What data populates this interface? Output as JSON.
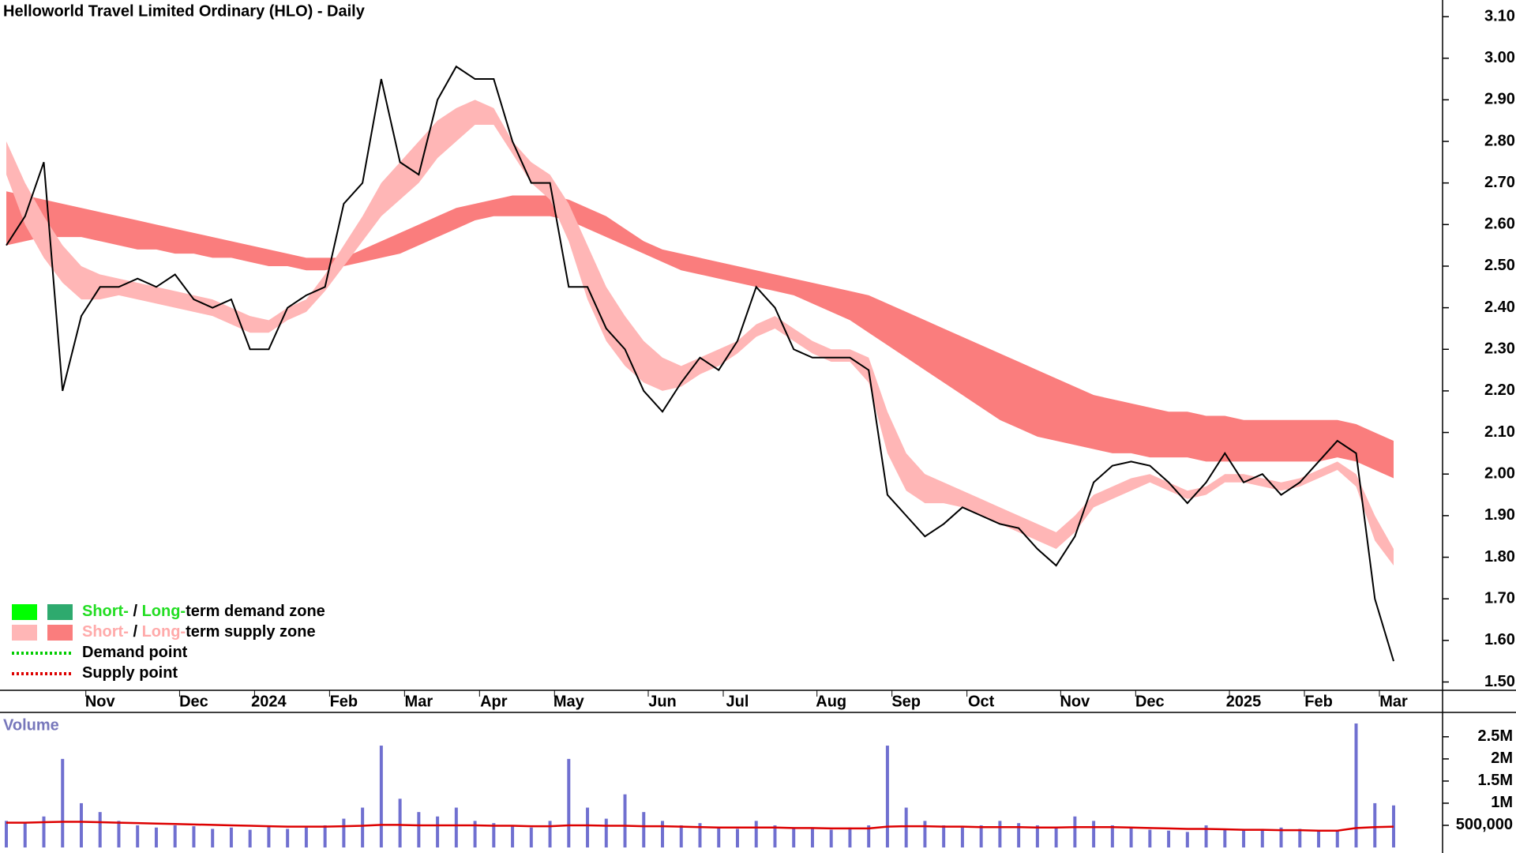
{
  "chart_data": [
    {
      "type": "line",
      "title": "Helloworld Travel Limited Ordinary (HLO) - Daily",
      "categories": [
        null,
        null,
        null,
        null,
        null,
        "Nov",
        null,
        null,
        null,
        null,
        "Dec",
        null,
        null,
        null,
        "2024",
        null,
        null,
        null,
        "Feb",
        null,
        null,
        null,
        "Mar",
        null,
        null,
        null,
        "Apr",
        null,
        null,
        null,
        "May",
        null,
        null,
        null,
        null,
        "Jun",
        null,
        null,
        null,
        "Jul",
        null,
        null,
        null,
        null,
        "Aug",
        null,
        null,
        null,
        "Sep",
        null,
        null,
        null,
        "Oct",
        null,
        null,
        null,
        null,
        "Nov",
        null,
        null,
        null,
        "Dec",
        null,
        null,
        null,
        null,
        "2025",
        null,
        null,
        null,
        "Feb",
        null,
        null,
        null,
        "Mar"
      ],
      "series": [
        {
          "color": "#000000",
          "values": [
            2.55,
            2.62,
            2.75,
            2.2,
            2.38,
            2.45,
            2.45,
            2.47,
            2.45,
            2.48,
            2.42,
            2.4,
            2.42,
            2.3,
            2.3,
            2.4,
            2.43,
            2.45,
            2.65,
            2.7,
            2.95,
            2.75,
            2.72,
            2.9,
            2.98,
            2.95,
            2.95,
            2.8,
            2.7,
            2.7,
            2.45,
            2.45,
            2.35,
            2.3,
            2.2,
            2.15,
            2.22,
            2.28,
            2.25,
            2.32,
            2.45,
            2.4,
            2.3,
            2.28,
            2.28,
            2.28,
            2.25,
            1.95,
            1.9,
            1.85,
            1.88,
            1.92,
            1.9,
            1.88,
            1.87,
            1.82,
            1.78,
            1.85,
            1.98,
            2.02,
            2.03,
            2.02,
            1.98,
            1.93,
            1.98,
            2.05,
            1.98,
            2.0,
            1.95,
            1.98,
            2.03,
            2.08,
            2.05,
            1.7,
            1.55
          ]
        }
      ],
      "bands": [
        {
          "color": "#fa7d7d",
          "upper": [
            2.68,
            2.67,
            2.66,
            2.65,
            2.64,
            2.63,
            2.62,
            2.61,
            2.6,
            2.59,
            2.58,
            2.57,
            2.56,
            2.55,
            2.54,
            2.53,
            2.52,
            2.52,
            2.52,
            2.54,
            2.56,
            2.58,
            2.6,
            2.62,
            2.64,
            2.65,
            2.66,
            2.67,
            2.67,
            2.67,
            2.66,
            2.64,
            2.62,
            2.59,
            2.56,
            2.54,
            2.53,
            2.52,
            2.51,
            2.5,
            2.49,
            2.48,
            2.47,
            2.46,
            2.45,
            2.44,
            2.43,
            2.41,
            2.39,
            2.37,
            2.35,
            2.33,
            2.31,
            2.29,
            2.27,
            2.25,
            2.23,
            2.21,
            2.19,
            2.18,
            2.17,
            2.16,
            2.15,
            2.15,
            2.14,
            2.14,
            2.13,
            2.13,
            2.13,
            2.13,
            2.13,
            2.13,
            2.12,
            2.1,
            2.08
          ],
          "lower": [
            2.55,
            2.56,
            2.57,
            2.57,
            2.57,
            2.56,
            2.55,
            2.54,
            2.54,
            2.53,
            2.53,
            2.52,
            2.52,
            2.51,
            2.5,
            2.5,
            2.49,
            2.49,
            2.5,
            2.51,
            2.52,
            2.53,
            2.55,
            2.57,
            2.59,
            2.61,
            2.62,
            2.62,
            2.62,
            2.62,
            2.61,
            2.59,
            2.57,
            2.55,
            2.53,
            2.51,
            2.49,
            2.48,
            2.47,
            2.46,
            2.45,
            2.44,
            2.43,
            2.41,
            2.39,
            2.37,
            2.34,
            2.31,
            2.28,
            2.25,
            2.22,
            2.19,
            2.16,
            2.13,
            2.11,
            2.09,
            2.08,
            2.07,
            2.06,
            2.05,
            2.05,
            2.04,
            2.04,
            2.04,
            2.03,
            2.03,
            2.03,
            2.03,
            2.03,
            2.03,
            2.03,
            2.04,
            2.03,
            2.01,
            1.99
          ]
        },
        {
          "color": "#ffb6b6",
          "upper": [
            2.8,
            2.7,
            2.62,
            2.55,
            2.5,
            2.48,
            2.47,
            2.46,
            2.45,
            2.44,
            2.43,
            2.42,
            2.4,
            2.38,
            2.37,
            2.4,
            2.42,
            2.48,
            2.55,
            2.62,
            2.7,
            2.75,
            2.8,
            2.85,
            2.88,
            2.9,
            2.88,
            2.8,
            2.75,
            2.72,
            2.65,
            2.55,
            2.45,
            2.38,
            2.32,
            2.28,
            2.26,
            2.28,
            2.3,
            2.32,
            2.36,
            2.38,
            2.35,
            2.32,
            2.3,
            2.3,
            2.28,
            2.15,
            2.05,
            2.0,
            1.98,
            1.96,
            1.94,
            1.92,
            1.9,
            1.88,
            1.86,
            1.9,
            1.95,
            1.97,
            1.99,
            2.0,
            1.98,
            1.96,
            1.97,
            2.0,
            2.0,
            1.99,
            1.98,
            1.99,
            2.01,
            2.03,
            2.0,
            1.9,
            1.82
          ],
          "lower": [
            2.72,
            2.6,
            2.52,
            2.46,
            2.42,
            2.42,
            2.43,
            2.42,
            2.41,
            2.4,
            2.39,
            2.38,
            2.36,
            2.34,
            2.34,
            2.37,
            2.39,
            2.44,
            2.5,
            2.56,
            2.62,
            2.66,
            2.7,
            2.76,
            2.8,
            2.84,
            2.84,
            2.77,
            2.7,
            2.66,
            2.56,
            2.42,
            2.32,
            2.26,
            2.22,
            2.2,
            2.21,
            2.24,
            2.26,
            2.29,
            2.33,
            2.35,
            2.32,
            2.29,
            2.27,
            2.27,
            2.22,
            2.05,
            1.96,
            1.93,
            1.93,
            1.92,
            1.9,
            1.88,
            1.86,
            1.84,
            1.82,
            1.86,
            1.92,
            1.94,
            1.96,
            1.98,
            1.96,
            1.94,
            1.95,
            1.98,
            1.98,
            1.97,
            1.96,
            1.97,
            1.99,
            2.01,
            1.97,
            1.84,
            1.78
          ]
        }
      ],
      "ylim": [
        1.48,
        3.14
      ],
      "yticks": [
        {
          "value": 1.5,
          "label": "1.50"
        },
        {
          "value": 1.6,
          "label": "1.60"
        },
        {
          "value": 1.7,
          "label": "1.70"
        },
        {
          "value": 1.8,
          "label": "1.80"
        },
        {
          "value": 1.9,
          "label": "1.90"
        },
        {
          "value": 2.0,
          "label": "2.00"
        },
        {
          "value": 2.1,
          "label": "2.10"
        },
        {
          "value": 2.2,
          "label": "2.20"
        },
        {
          "value": 2.3,
          "label": "2.30"
        },
        {
          "value": 2.4,
          "label": "2.40"
        },
        {
          "value": 2.5,
          "label": "2.50"
        },
        {
          "value": 2.6,
          "label": "2.60"
        },
        {
          "value": 2.7,
          "label": "2.70"
        },
        {
          "value": 2.8,
          "label": "2.80"
        },
        {
          "value": 2.9,
          "label": "2.90"
        },
        {
          "value": 3.0,
          "label": "3.00"
        },
        {
          "value": 3.1,
          "label": "3.10"
        }
      ],
      "legend": [
        {
          "parts": [
            "Short-",
            " / ",
            "Long-",
            "term demand zone"
          ],
          "colors": [
            "#00ff00",
            "#2eaa6e"
          ],
          "text_colors": [
            "#22dd22",
            "#000000",
            "#22dd22",
            "#000000"
          ]
        },
        {
          "parts": [
            "Short-",
            " / ",
            "Long-",
            "term supply zone"
          ],
          "colors": [
            "#ffb6b6",
            "#fa7d7d"
          ],
          "text_colors": [
            "#ffaaaa",
            "#000000",
            "#ffaaaa",
            "#000000"
          ]
        },
        {
          "parts": [
            "Demand point"
          ],
          "colors": [
            "#00cc00"
          ],
          "text_colors": [
            "#000000"
          ],
          "dotted": true
        },
        {
          "parts": [
            "Supply point"
          ],
          "colors": [
            "#dd0000"
          ],
          "text_colors": [
            "#000000"
          ],
          "dotted": true
        }
      ]
    },
    {
      "type": "bar",
      "title": "Volume",
      "series": [
        {
          "color": "#7070d0",
          "values": [
            600000,
            550000,
            700000,
            2000000,
            1000000,
            800000,
            600000,
            500000,
            450000,
            500000,
            480000,
            420000,
            450000,
            400000,
            500000,
            420000,
            450000,
            500000,
            650000,
            900000,
            2300000,
            1100000,
            800000,
            700000,
            900000,
            600000,
            550000,
            500000,
            450000,
            600000,
            2000000,
            900000,
            650000,
            1200000,
            800000,
            600000,
            500000,
            550000,
            450000,
            420000,
            600000,
            500000,
            450000,
            420000,
            400000,
            450000,
            500000,
            2300000,
            900000,
            600000,
            500000,
            450000,
            500000,
            600000,
            550000,
            500000,
            450000,
            700000,
            600000,
            500000,
            450000,
            400000,
            380000,
            350000,
            500000,
            420000,
            380000,
            400000,
            450000,
            420000,
            400000,
            380000,
            2800000,
            1000000,
            950000
          ]
        },
        {
          "type": "line",
          "color": "#dd0000",
          "values": [
            560000,
            560000,
            570000,
            580000,
            580000,
            570000,
            560000,
            550000,
            540000,
            530000,
            520000,
            510000,
            500000,
            490000,
            480000,
            470000,
            470000,
            470000,
            480000,
            490000,
            510000,
            510000,
            500000,
            500000,
            500000,
            500000,
            490000,
            490000,
            480000,
            480000,
            500000,
            500000,
            490000,
            490000,
            480000,
            480000,
            470000,
            460000,
            450000,
            450000,
            450000,
            450000,
            440000,
            440000,
            430000,
            430000,
            430000,
            470000,
            480000,
            480000,
            470000,
            470000,
            460000,
            460000,
            460000,
            450000,
            450000,
            460000,
            460000,
            460000,
            450000,
            440000,
            430000,
            420000,
            420000,
            410000,
            400000,
            400000,
            390000,
            390000,
            380000,
            380000,
            440000,
            460000,
            470000
          ]
        }
      ],
      "ylim": [
        0,
        3050000
      ],
      "yticks": [
        {
          "value": 500000,
          "label": "500,000"
        },
        {
          "value": 1000000,
          "label": "1M"
        },
        {
          "value": 1500000,
          "label": "1.5M"
        },
        {
          "value": 2000000,
          "label": "2M"
        },
        {
          "value": 2500000,
          "label": "2.5M"
        }
      ]
    }
  ]
}
